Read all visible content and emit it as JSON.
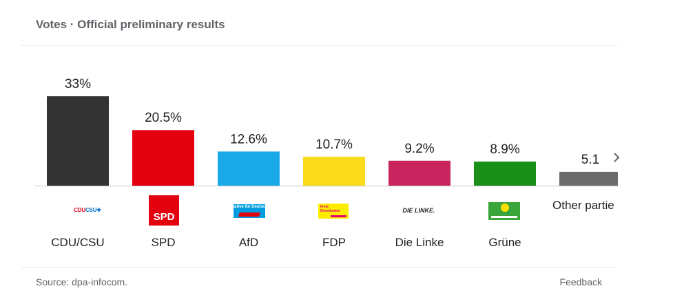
{
  "header": {
    "title": "Votes · Official preliminary results"
  },
  "footer": {
    "source": "Source: dpa-infocom.",
    "feedback": "Feedback"
  },
  "logos": {
    "cdu": {
      "cdu": "CDU",
      "csu": "CSU"
    },
    "spd": "SPD",
    "afd": "Alternative für Deutschland",
    "fdp": "Freie Demokraten",
    "linke": "DIE LINKE."
  },
  "chart_data": {
    "type": "bar",
    "categories": [
      "CDU/CSU",
      "SPD",
      "AfD",
      "FDP",
      "Die Linke",
      "Grüne",
      "Other parties"
    ],
    "values": [
      33,
      20.5,
      12.6,
      10.7,
      9.2,
      8.9,
      5.1
    ],
    "value_labels": [
      "33%",
      "20.5%",
      "12.6%",
      "10.7%",
      "9.2%",
      "8.9%",
      "5.1"
    ],
    "visible_category_labels": [
      "CDU/CSU",
      "SPD",
      "AfD",
      "FDP",
      "Die Linke",
      "Grüne",
      "Other partie"
    ],
    "colors": [
      "#333333",
      "#e3000f",
      "#19a9e8",
      "#fadc1c",
      "#c8255f",
      "#1a8f1a",
      "#6b6b6b"
    ],
    "ylim": [
      0,
      33
    ],
    "grid": false,
    "legend": "none"
  }
}
